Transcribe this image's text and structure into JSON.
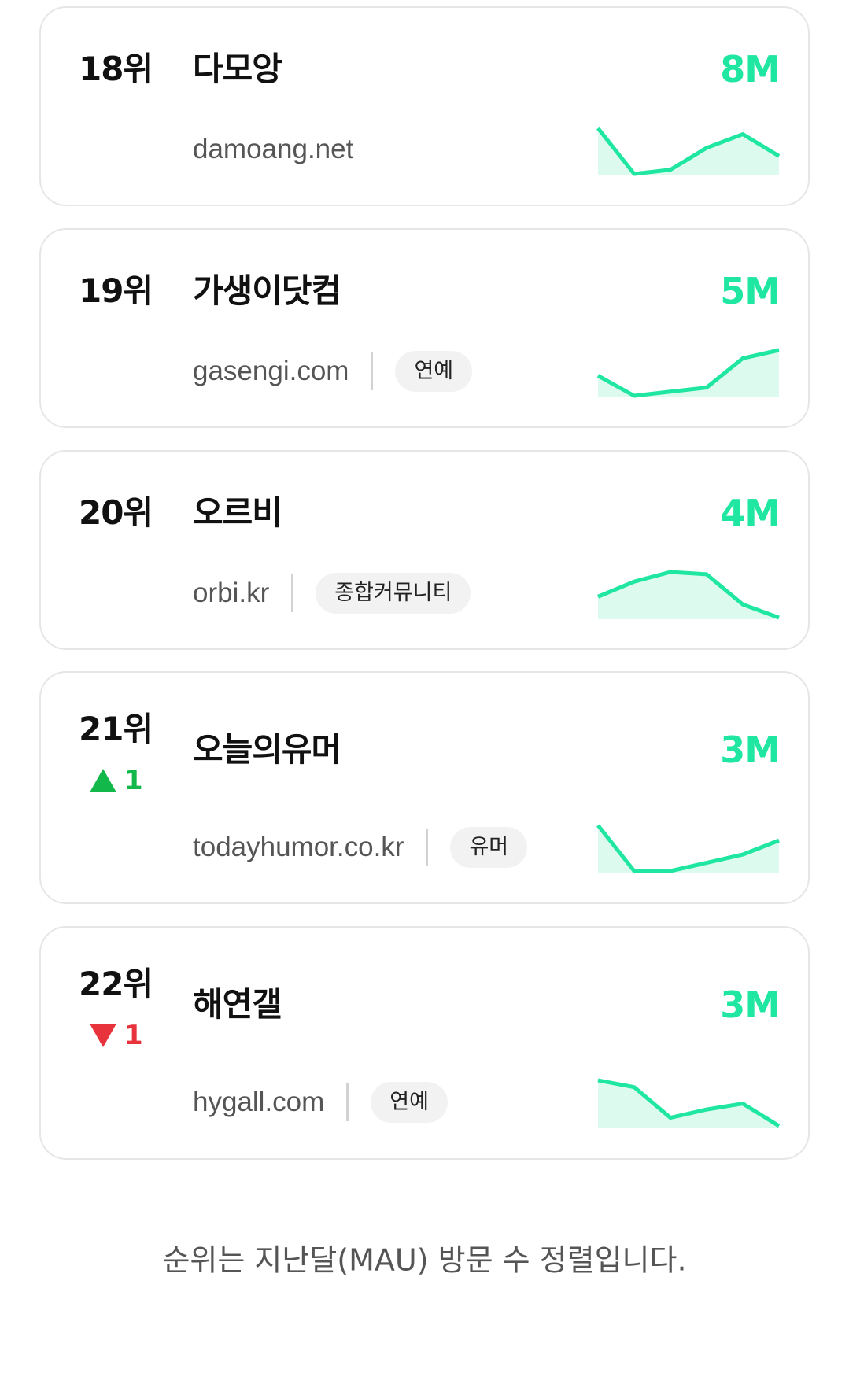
{
  "colors": {
    "accent": "#1fe6a0",
    "fill": "#dcfbee",
    "up": "#13b84a",
    "down": "#e8333d"
  },
  "items": [
    {
      "rank": "18위",
      "name": "다모앙",
      "domain": "damoang.net",
      "tag": null,
      "mau": "8M",
      "change": null,
      "trend": [
        1.0,
        0,
        0.09,
        0.57,
        0.87,
        0.39
      ]
    },
    {
      "rank": "19위",
      "name": "가생이닷컴",
      "domain": "gasengi.com",
      "tag": "연예",
      "mau": "5M",
      "change": null,
      "trend": [
        0.44,
        0,
        0.09,
        0.18,
        0.82,
        1.0
      ]
    },
    {
      "rank": "20위",
      "name": "오르비",
      "domain": "orbi.kr",
      "tag": "종합커뮤니티",
      "mau": "4M",
      "change": null,
      "trend": [
        0.46,
        0.79,
        1.0,
        0.95,
        0.29,
        0
      ]
    },
    {
      "rank": "21위",
      "name": "오늘의유머",
      "domain": "todayhumor.co.kr",
      "tag": "유머",
      "mau": "3M",
      "change": {
        "direction": "up",
        "value": "1"
      },
      "trend": [
        1.0,
        0,
        0,
        0.18,
        0.36,
        0.67
      ]
    },
    {
      "rank": "22위",
      "name": "해연갤",
      "domain": "hygall.com",
      "tag": "연예",
      "mau": "3M",
      "change": {
        "direction": "down",
        "value": "1"
      },
      "trend": [
        1.0,
        0.85,
        0.18,
        0.36,
        0.49,
        0
      ]
    }
  ],
  "footer": "순위는 지난달(MAU) 방문 수 정렬입니다."
}
